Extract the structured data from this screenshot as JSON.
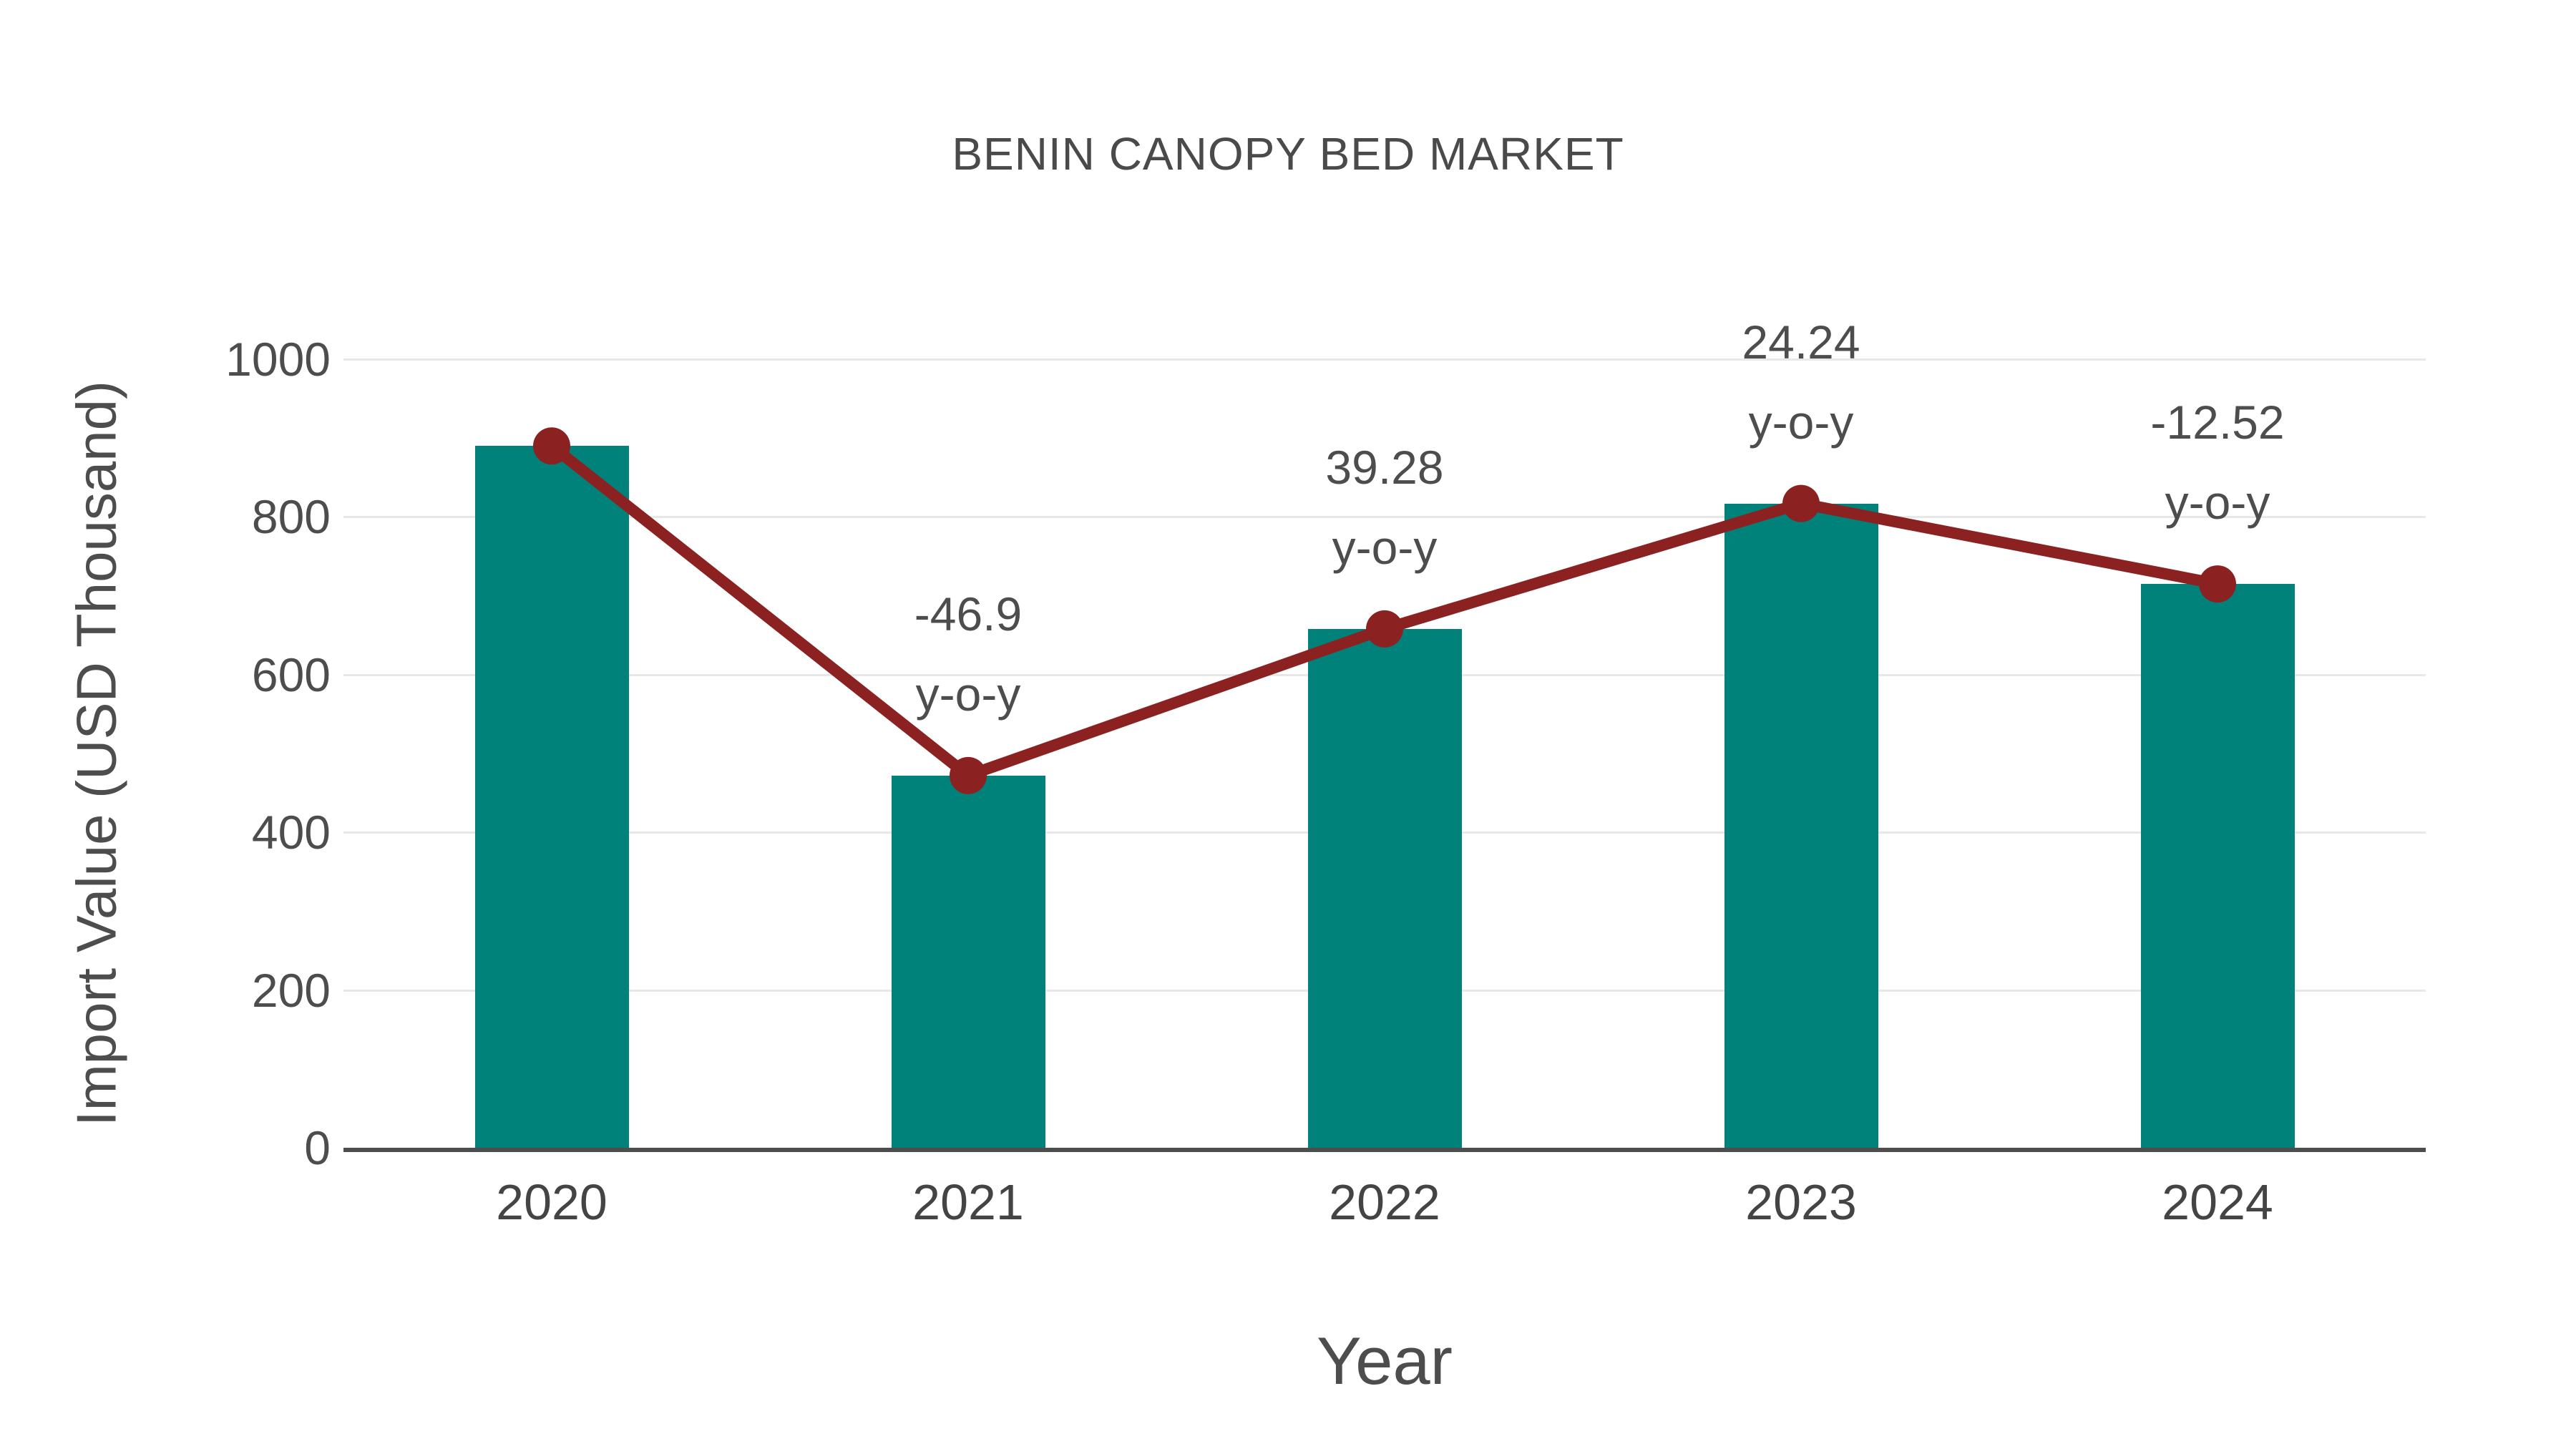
{
  "page": {
    "background_color": "#ffffff"
  },
  "chart_data": {
    "type": "bar",
    "subtype": "bar-with-line-overlay",
    "title": "BENIN CANOPY BED MARKET",
    "xlabel": "Year",
    "ylabel": "Import Value (USD Thousand)",
    "categories": [
      "2020",
      "2021",
      "2022",
      "2023",
      "2024"
    ],
    "series": [
      {
        "name": "Import Value (USD Thousand)",
        "type": "bar",
        "color": "#00827b",
        "values": [
          890,
          472,
          658,
          817,
          715
        ]
      },
      {
        "name": "y-o-y change (%)",
        "type": "line",
        "color": "#8b2221",
        "marker": "circle",
        "values_pct": [
          null,
          -46.9,
          39.28,
          24.24,
          -12.52
        ],
        "plotted_at_bar_tops": true
      }
    ],
    "annotations": [
      {
        "category": "2021",
        "line1": "-46.9",
        "line2": "y-o-y"
      },
      {
        "category": "2022",
        "line1": "39.28",
        "line2": "y-o-y"
      },
      {
        "category": "2023",
        "line1": "24.24",
        "line2": "y-o-y"
      },
      {
        "category": "2024",
        "line1": "-12.52",
        "line2": "y-o-y"
      }
    ],
    "ylim": [
      0,
      1000
    ],
    "yticks": [
      0,
      200,
      400,
      600,
      800,
      1000
    ],
    "grid": true,
    "legend": false
  }
}
